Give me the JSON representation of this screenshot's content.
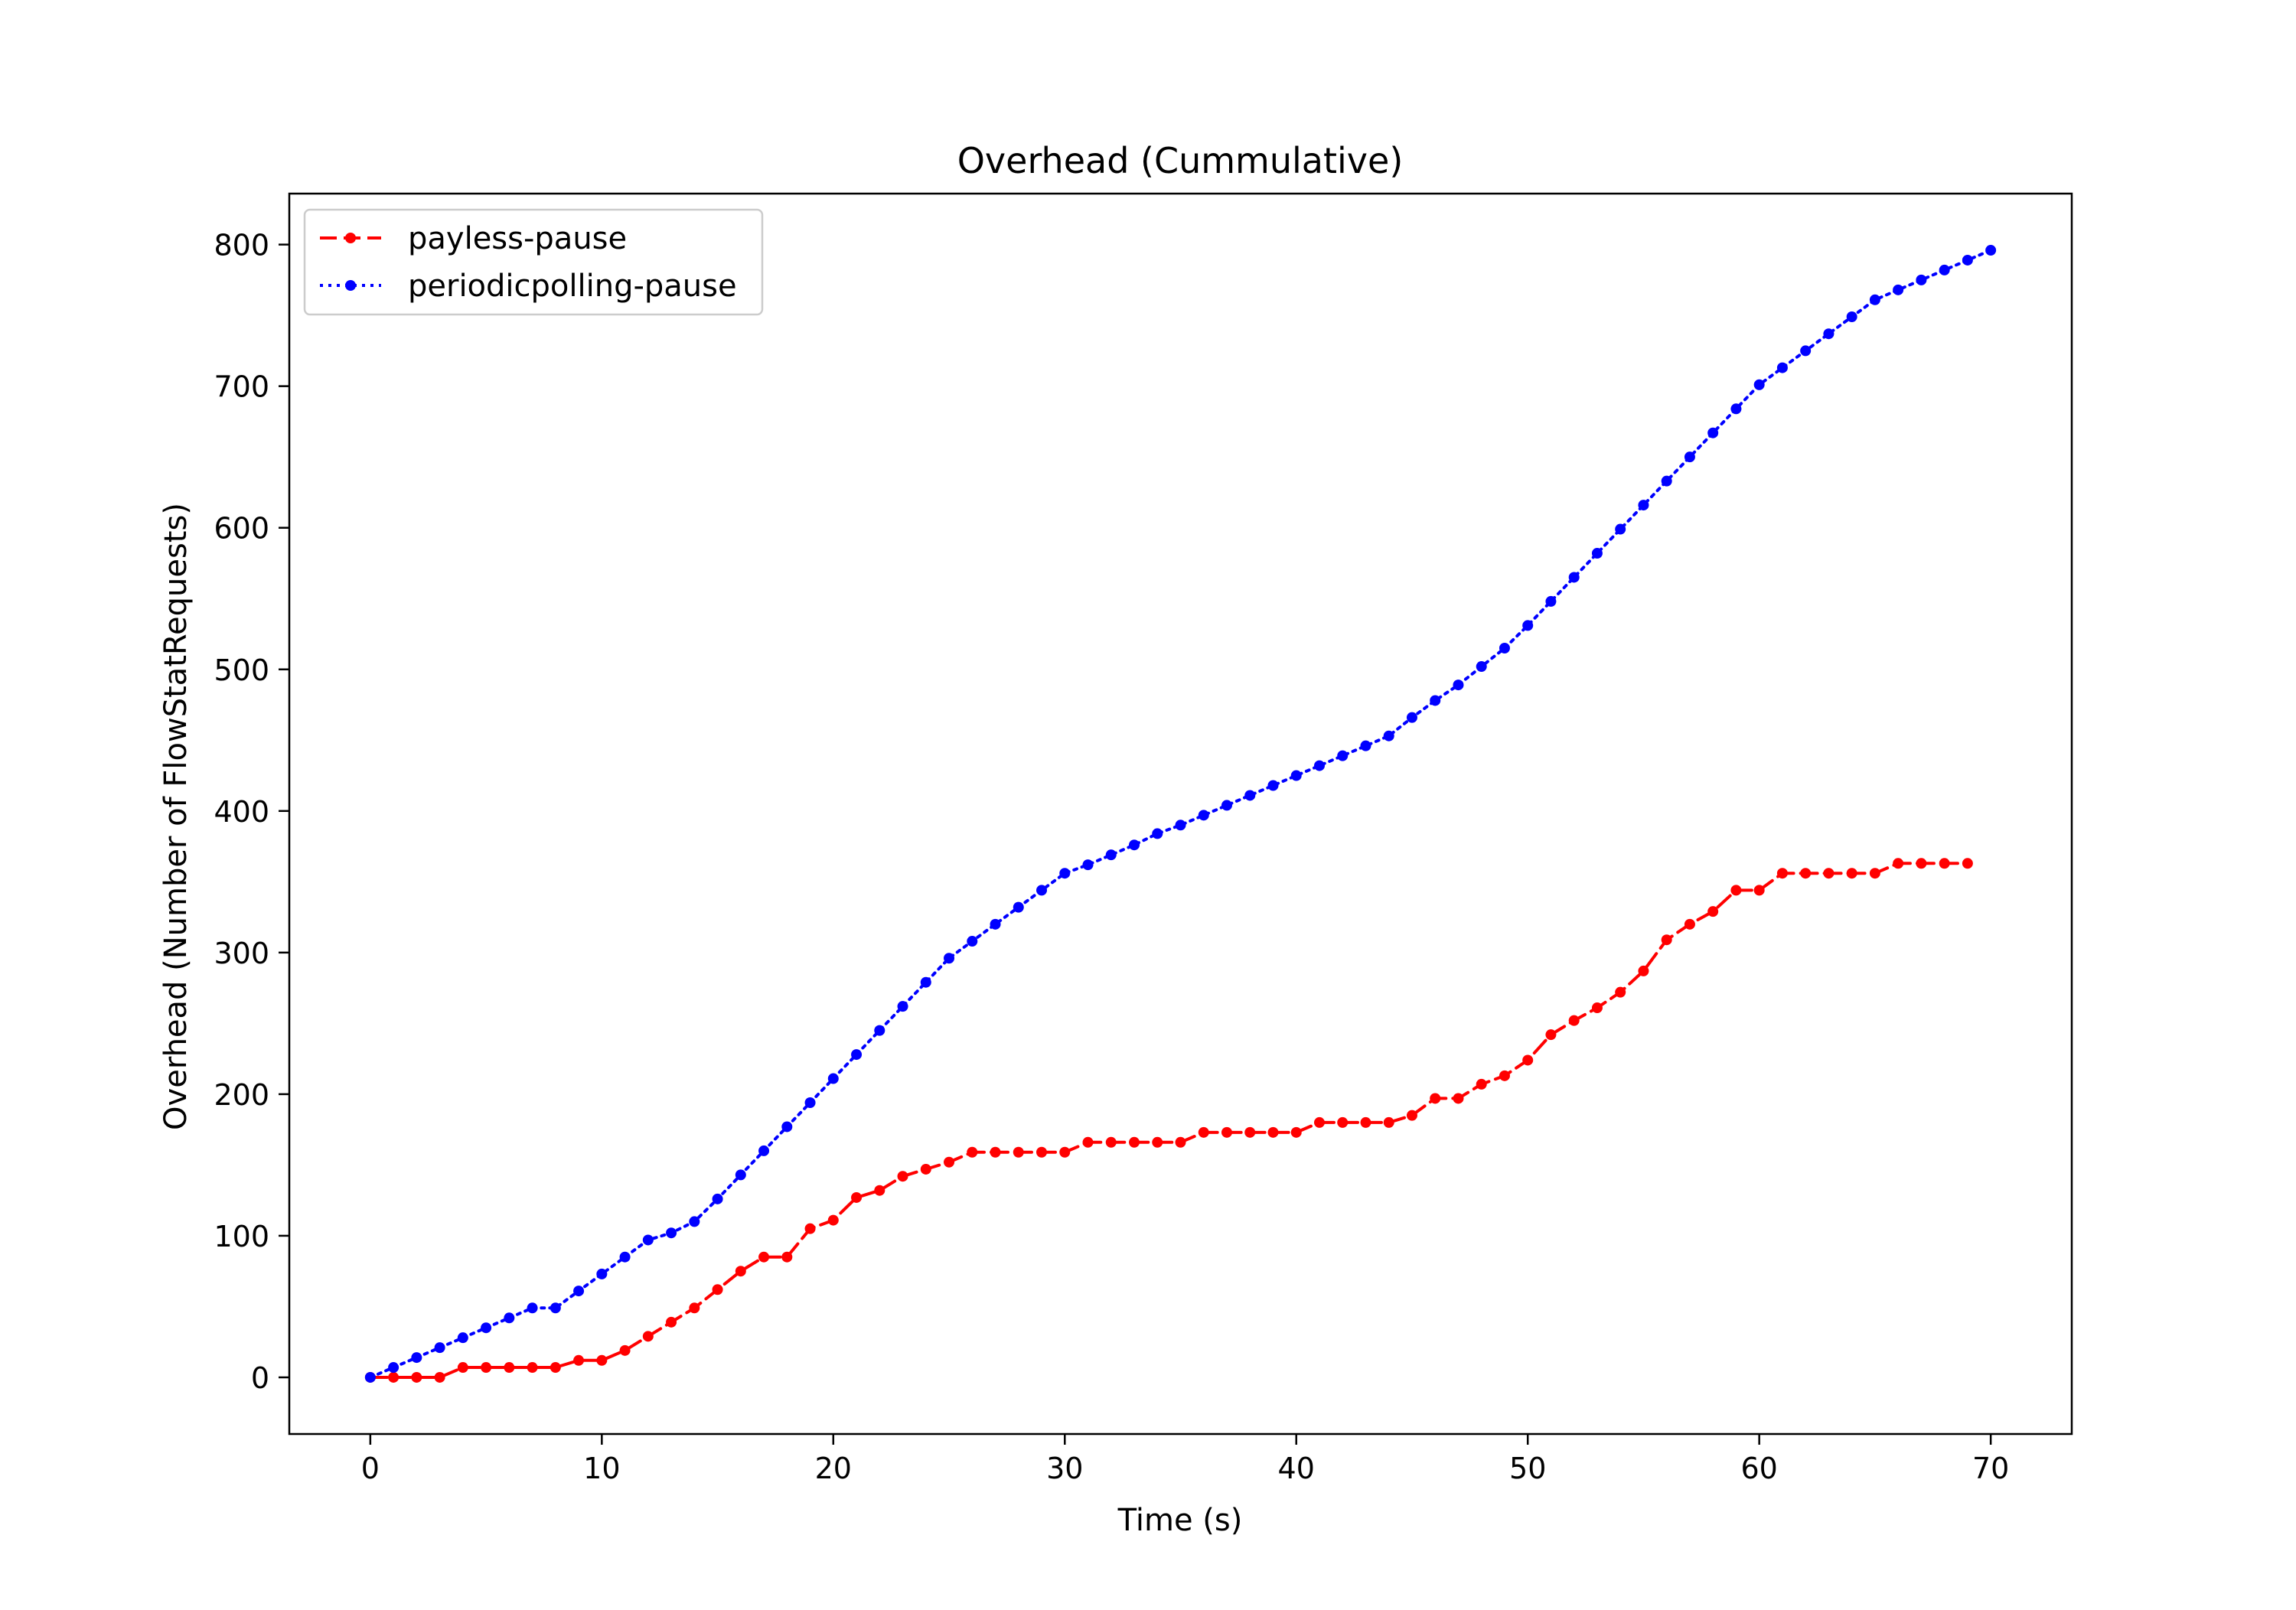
{
  "chart_data": {
    "type": "line",
    "title": "Overhead (Cummulative)",
    "xlabel": "Time (s)",
    "ylabel": "Overhead (Number of FlowStatRequests)",
    "xlim": [
      -3.5,
      73.5
    ],
    "ylim": [
      -40,
      836
    ],
    "xticks": [
      0,
      10,
      20,
      30,
      40,
      50,
      60,
      70
    ],
    "yticks": [
      0,
      100,
      200,
      300,
      400,
      500,
      600,
      700,
      800
    ],
    "grid": false,
    "legend_position": "top-left",
    "series": [
      {
        "name": "payless-pause",
        "color": "#ff0000",
        "line_style": "dashed",
        "marker": "circle",
        "x": [
          0,
          1,
          2,
          3,
          4,
          5,
          6,
          7,
          8,
          9,
          10,
          11,
          12,
          13,
          14,
          15,
          16,
          17,
          18,
          19,
          20,
          21,
          22,
          23,
          24,
          25,
          26,
          27,
          28,
          29,
          30,
          31,
          32,
          33,
          34,
          35,
          36,
          37,
          38,
          39,
          40,
          41,
          42,
          43,
          44,
          45,
          46,
          47,
          48,
          49,
          50,
          51,
          52,
          53,
          54,
          55,
          56,
          57,
          58,
          59,
          60,
          61,
          62,
          63,
          64,
          65,
          66,
          67,
          68,
          69
        ],
        "y": [
          0,
          0,
          0,
          0,
          7,
          7,
          7,
          7,
          7,
          12,
          12,
          19,
          29,
          39,
          49,
          62,
          75,
          85,
          85,
          105,
          111,
          127,
          132,
          142,
          147,
          152,
          159,
          159,
          159,
          159,
          159,
          166,
          166,
          166,
          166,
          166,
          173,
          173,
          173,
          173,
          173,
          180,
          180,
          180,
          180,
          185,
          197,
          197,
          207,
          213,
          224,
          242,
          252,
          261,
          272,
          287,
          309,
          320,
          329,
          344,
          344,
          356,
          356,
          356,
          356,
          356,
          363,
          363,
          363,
          363
        ]
      },
      {
        "name": "periodicpolling-pause",
        "color": "#0000ff",
        "line_style": "dotted",
        "marker": "circle",
        "x": [
          0,
          1,
          2,
          3,
          4,
          5,
          6,
          7,
          8,
          9,
          10,
          11,
          12,
          13,
          14,
          15,
          16,
          17,
          18,
          19,
          20,
          21,
          22,
          23,
          24,
          25,
          26,
          27,
          28,
          29,
          30,
          31,
          32,
          33,
          34,
          35,
          36,
          37,
          38,
          39,
          40,
          41,
          42,
          43,
          44,
          45,
          46,
          47,
          48,
          49,
          50,
          51,
          52,
          53,
          54,
          55,
          56,
          57,
          58,
          59,
          60,
          61,
          62,
          63,
          64,
          65,
          66,
          67,
          68,
          69,
          70
        ],
        "y": [
          0,
          7,
          14,
          21,
          28,
          35,
          42,
          49,
          49,
          61,
          73,
          85,
          97,
          102,
          110,
          126,
          143,
          160,
          177,
          194,
          211,
          228,
          245,
          262,
          279,
          296,
          308,
          320,
          332,
          344,
          356,
          362,
          369,
          376,
          384,
          390,
          397,
          404,
          411,
          418,
          425,
          432,
          439,
          446,
          453,
          466,
          478,
          489,
          502,
          515,
          531,
          548,
          565,
          582,
          599,
          616,
          633,
          650,
          667,
          684,
          701,
          713,
          725,
          737,
          749,
          761,
          768,
          775,
          782,
          789,
          796
        ]
      }
    ]
  }
}
